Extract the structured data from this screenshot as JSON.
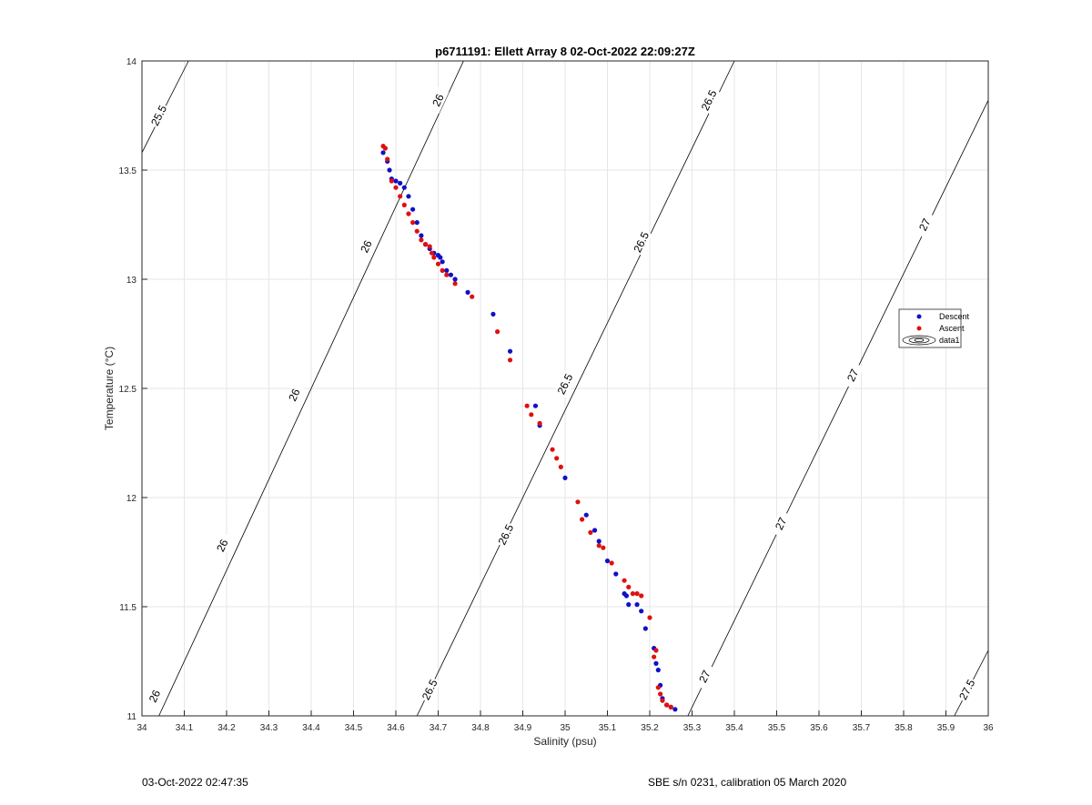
{
  "figure": {
    "footer_left": "03-Oct-2022 02:47:35",
    "footer_right": "SBE s/n 0231, calibration 05 March 2020"
  },
  "chart_data": {
    "type": "scatter",
    "title": "p6711191: Ellett Array 8 02-Oct-2022 22:09:27Z",
    "xlabel": "Salinity (psu)",
    "ylabel": "Temperature (°C)",
    "xlim": [
      34,
      36
    ],
    "ylim": [
      11,
      14
    ],
    "xticks": [
      "34",
      "34.1",
      "34.2",
      "34.3",
      "34.4",
      "34.5",
      "34.6",
      "34.7",
      "34.8",
      "34.9",
      "35",
      "35.1",
      "35.2",
      "35.3",
      "35.4",
      "35.5",
      "35.6",
      "35.7",
      "35.8",
      "35.9",
      "36"
    ],
    "yticks": [
      "11",
      "11.5",
      "12",
      "12.5",
      "13",
      "13.5",
      "14"
    ],
    "grid": true,
    "legend_position": "right",
    "legend": [
      "Descent",
      "Ascent",
      "data1"
    ],
    "colors": {
      "Descent": "#1010c8",
      "Ascent": "#e01010",
      "contour": "#000000",
      "grid": "#e6e6e6"
    },
    "contours": [
      {
        "level": "25.5",
        "points": [
          [
            34.0,
            13.58
          ],
          [
            34.11,
            14.0
          ]
        ],
        "labels": [
          {
            "x": 34.04,
            "y": 13.75
          }
        ]
      },
      {
        "level": "26",
        "points": [
          [
            34.04,
            11.0
          ],
          [
            34.76,
            14.0
          ]
        ],
        "labels": [
          {
            "x": 34.03,
            "y": 11.09
          },
          {
            "x": 34.19,
            "y": 11.78
          },
          {
            "x": 34.36,
            "y": 12.47
          },
          {
            "x": 34.53,
            "y": 13.15
          },
          {
            "x": 34.7,
            "y": 13.82
          }
        ]
      },
      {
        "level": "26.5",
        "points": [
          [
            34.65,
            11.0
          ],
          [
            35.4,
            14.0
          ]
        ],
        "labels": [
          {
            "x": 34.68,
            "y": 11.12
          },
          {
            "x": 34.86,
            "y": 11.83
          },
          {
            "x": 35.0,
            "y": 12.52
          },
          {
            "x": 35.18,
            "y": 13.17
          },
          {
            "x": 35.34,
            "y": 13.82
          }
        ]
      },
      {
        "level": "27",
        "points": [
          [
            35.29,
            11.0
          ],
          [
            36.0,
            13.82
          ]
        ],
        "labels": [
          {
            "x": 35.33,
            "y": 11.18
          },
          {
            "x": 35.51,
            "y": 11.88
          },
          {
            "x": 35.68,
            "y": 12.56
          },
          {
            "x": 35.85,
            "y": 13.25
          }
        ]
      },
      {
        "level": "27.5",
        "points": [
          [
            35.92,
            11.0
          ],
          [
            36.0,
            11.3
          ]
        ],
        "labels": [
          {
            "x": 35.95,
            "y": 11.12
          }
        ]
      }
    ],
    "series": [
      {
        "name": "Descent",
        "x": [
          34.57,
          34.58,
          34.585,
          34.59,
          34.6,
          34.61,
          34.62,
          34.63,
          34.64,
          34.65,
          34.66,
          34.67,
          34.68,
          34.69,
          34.7,
          34.705,
          34.71,
          34.72,
          34.73,
          34.74,
          34.77,
          34.83,
          34.87,
          34.93,
          34.94,
          35.0,
          35.05,
          35.07,
          35.08,
          35.1,
          35.12,
          35.14,
          35.145,
          35.15,
          35.17,
          35.18,
          35.19,
          35.21,
          35.215,
          35.22,
          35.225,
          35.23,
          35.24,
          35.25,
          35.26
        ],
        "y": [
          13.58,
          13.54,
          13.5,
          13.46,
          13.45,
          13.44,
          13.42,
          13.38,
          13.32,
          13.26,
          13.2,
          13.16,
          13.14,
          13.12,
          13.11,
          13.1,
          13.08,
          13.04,
          13.02,
          13.0,
          12.94,
          12.84,
          12.67,
          12.42,
          12.33,
          12.09,
          11.92,
          11.85,
          11.8,
          11.71,
          11.65,
          11.56,
          11.55,
          11.51,
          11.51,
          11.48,
          11.4,
          11.31,
          11.24,
          11.21,
          11.14,
          11.08,
          11.05,
          11.04,
          11.03
        ]
      },
      {
        "name": "Ascent",
        "x": [
          34.57,
          34.575,
          34.58,
          34.59,
          34.6,
          34.61,
          34.62,
          34.63,
          34.64,
          34.65,
          34.66,
          34.67,
          34.68,
          34.685,
          34.69,
          34.7,
          34.71,
          34.72,
          34.74,
          34.78,
          34.84,
          34.87,
          34.91,
          34.92,
          34.94,
          34.97,
          34.98,
          34.99,
          35.03,
          35.04,
          35.06,
          35.08,
          35.09,
          35.11,
          35.14,
          35.15,
          35.16,
          35.17,
          35.18,
          35.2,
          35.21,
          35.215,
          35.22,
          35.225,
          35.23,
          35.24,
          35.25
        ],
        "y": [
          13.61,
          13.6,
          13.55,
          13.45,
          13.42,
          13.38,
          13.34,
          13.3,
          13.26,
          13.22,
          13.18,
          13.16,
          13.15,
          13.12,
          13.1,
          13.07,
          13.04,
          13.02,
          12.98,
          12.92,
          12.76,
          12.63,
          12.42,
          12.38,
          12.34,
          12.22,
          12.18,
          12.14,
          11.98,
          11.9,
          11.84,
          11.78,
          11.77,
          11.7,
          11.62,
          11.59,
          11.56,
          11.56,
          11.55,
          11.45,
          11.27,
          11.3,
          11.13,
          11.1,
          11.07,
          11.05,
          11.04
        ]
      }
    ]
  }
}
